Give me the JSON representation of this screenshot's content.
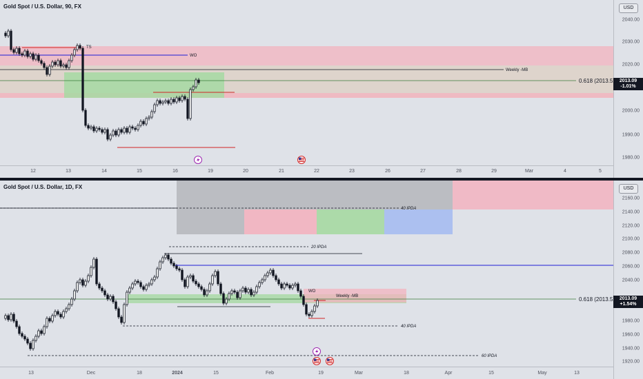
{
  "chart_top": {
    "title": "Gold Spot / U.S. Dollar, 90, FX",
    "currency": "USD",
    "price_ticks": [
      "2040.00",
      "2030.00",
      "2020.00",
      "2010.00",
      "2000.00",
      "1990.00",
      "1980.00"
    ],
    "time_ticks": [
      "12",
      "13",
      "14",
      "15",
      "16",
      "19",
      "20",
      "21",
      "22",
      "23",
      "26",
      "27",
      "28",
      "29",
      "Mar",
      "4",
      "5"
    ],
    "last_price": "2013.09",
    "change": "-1.01%",
    "labels": {
      "ts": "TS",
      "wo": "WO",
      "weekly_mb": "Weekly -MB",
      "fib": "0.618 (2013.52)"
    }
  },
  "chart_bottom": {
    "title": "Gold Spot / U.S. Dollar, 1D, FX",
    "currency": "USD",
    "price_ticks": [
      "2160.00",
      "2140.00",
      "2120.00",
      "2100.00",
      "2080.00",
      "2060.00",
      "2040.00",
      "2020.00",
      "1980.00",
      "1960.00",
      "1940.00",
      "1920.00"
    ],
    "time_ticks": [
      "13",
      "Dec",
      "18",
      "2024",
      "15",
      "Feb",
      "19",
      "Mar",
      "18",
      "Apr",
      "15",
      "May",
      "13"
    ],
    "last_price": "2013.09",
    "change": "+1.54%",
    "labels": {
      "ipda_40_top": "40 IPDA",
      "ipda_20": "20 IPDA",
      "ipda_40_bottom": "40 IPDA",
      "ipda_60": "60 IPDA",
      "wo": "WO",
      "weekly_mb": "Weekly -MB",
      "fib": "0.618 (2013.52)"
    }
  },
  "colors": {
    "up_candle": "#ffffff",
    "down_candle": "#131722",
    "red_zone": "#f3b3bf",
    "green_zone": "#a6d9a2",
    "blue_line": "#1c1cd6",
    "red_line": "#d12424",
    "gray_zone": "#b7b9be",
    "blue_zone": "#a9bef0"
  },
  "icons": [
    "lightning-icon",
    "us-flag-icon"
  ]
}
